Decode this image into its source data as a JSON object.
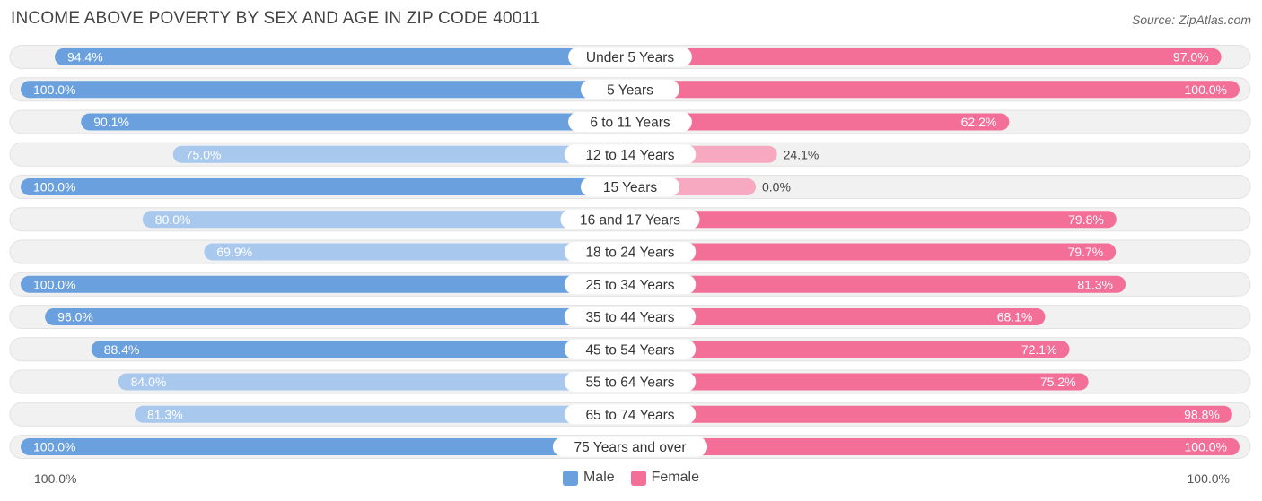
{
  "title": "INCOME ABOVE POVERTY BY SEX AND AGE IN ZIP CODE 40011",
  "source": "Source: ZipAtlas.com",
  "axis_left_label": "100.0%",
  "axis_right_label": "100.0%",
  "legend": {
    "male": "Male",
    "female": "Female"
  },
  "colors": {
    "male_strong": "#6aa0de",
    "male_light": "#a9c8ee",
    "female_strong": "#f36f98",
    "female_light": "#f8a9c2",
    "track": "#f1f1f1"
  },
  "chart_data": {
    "type": "bar",
    "orientation": "horizontal-diverging",
    "title": "INCOME ABOVE POVERTY BY SEX AND AGE IN ZIP CODE 40011",
    "categories": [
      "Under 5 Years",
      "5 Years",
      "6 to 11 Years",
      "12 to 14 Years",
      "15 Years",
      "16 and 17 Years",
      "18 to 24 Years",
      "25 to 34 Years",
      "35 to 44 Years",
      "45 to 54 Years",
      "55 to 64 Years",
      "65 to 74 Years",
      "75 Years and over"
    ],
    "series": [
      {
        "name": "Male",
        "values": [
          94.4,
          100.0,
          90.1,
          75.0,
          100.0,
          80.0,
          69.9,
          100.0,
          96.0,
          88.4,
          84.0,
          81.3,
          100.0
        ],
        "labels": [
          "94.4%",
          "100.0%",
          "90.1%",
          "75.0%",
          "100.0%",
          "80.0%",
          "69.9%",
          "100.0%",
          "96.0%",
          "88.4%",
          "84.0%",
          "81.3%",
          "100.0%"
        ]
      },
      {
        "name": "Female",
        "values": [
          97.0,
          100.0,
          62.2,
          24.1,
          0.0,
          79.8,
          79.7,
          81.3,
          68.1,
          72.1,
          75.2,
          98.8,
          100.0
        ],
        "labels": [
          "97.0%",
          "100.0%",
          "62.2%",
          "24.1%",
          "0.0%",
          "79.8%",
          "79.7%",
          "81.3%",
          "68.1%",
          "72.1%",
          "75.2%",
          "98.8%",
          "100.0%"
        ]
      }
    ],
    "xlim": [
      0,
      100
    ],
    "legend_position": "bottom-center"
  }
}
